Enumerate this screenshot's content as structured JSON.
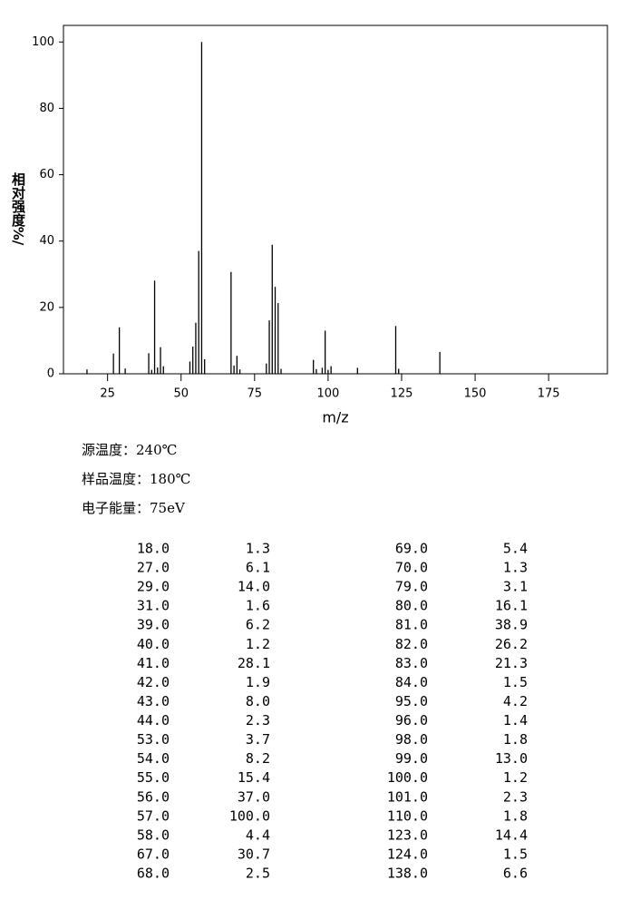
{
  "chart_data": {
    "type": "bar",
    "xlabel": "m/z",
    "ylabel": "相对强度%/",
    "x": [
      18,
      27,
      29,
      31,
      39,
      40,
      41,
      42,
      43,
      44,
      53,
      54,
      55,
      56,
      57,
      58,
      67,
      68,
      69,
      70,
      79,
      80,
      81,
      82,
      83,
      84,
      95,
      96,
      98,
      99,
      100,
      101,
      110,
      123,
      124,
      138
    ],
    "values": [
      1.3,
      6.1,
      14.0,
      1.6,
      6.2,
      1.2,
      28.1,
      1.9,
      8.0,
      2.3,
      3.7,
      8.2,
      15.4,
      37.0,
      100.0,
      4.4,
      30.7,
      2.5,
      5.4,
      1.3,
      3.1,
      16.1,
      38.9,
      26.2,
      21.3,
      1.5,
      4.2,
      1.4,
      1.8,
      13.0,
      1.2,
      2.3,
      1.8,
      14.4,
      1.5,
      6.6
    ],
    "color": "#000000",
    "xlim": [
      10,
      195
    ],
    "xticks": [
      25,
      50,
      75,
      100,
      125,
      150,
      175
    ],
    "ylim": [
      0,
      105
    ],
    "yticks": [
      0,
      20,
      40,
      60,
      80,
      100
    ]
  },
  "info": [
    "源温度：240℃",
    "样品温度：180℃",
    "电子能量：75eV"
  ],
  "table": {
    "rows": [
      [
        "18.0",
        "1.3",
        "69.0",
        "5.4"
      ],
      [
        "27.0",
        "6.1",
        "70.0",
        "1.3"
      ],
      [
        "29.0",
        "14.0",
        "79.0",
        "3.1"
      ],
      [
        "31.0",
        "1.6",
        "80.0",
        "16.1"
      ],
      [
        "39.0",
        "6.2",
        "81.0",
        "38.9"
      ],
      [
        "40.0",
        "1.2",
        "82.0",
        "26.2"
      ],
      [
        "41.0",
        "28.1",
        "83.0",
        "21.3"
      ],
      [
        "42.0",
        "1.9",
        "84.0",
        "1.5"
      ],
      [
        "43.0",
        "8.0",
        "95.0",
        "4.2"
      ],
      [
        "44.0",
        "2.3",
        "96.0",
        "1.4"
      ],
      [
        "53.0",
        "3.7",
        "98.0",
        "1.8"
      ],
      [
        "54.0",
        "8.2",
        "99.0",
        "13.0"
      ],
      [
        "55.0",
        "15.4",
        "100.0",
        "1.2"
      ],
      [
        "56.0",
        "37.0",
        "101.0",
        "2.3"
      ],
      [
        "57.0",
        "100.0",
        "110.0",
        "1.8"
      ],
      [
        "58.0",
        "4.4",
        "123.0",
        "14.4"
      ],
      [
        "67.0",
        "30.7",
        "124.0",
        "1.5"
      ],
      [
        "68.0",
        "2.5",
        "138.0",
        "6.6"
      ]
    ]
  }
}
